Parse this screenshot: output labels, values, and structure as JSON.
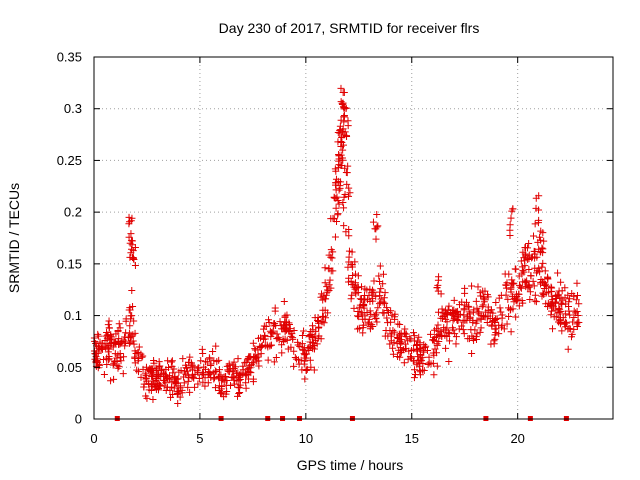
{
  "chart_data": {
    "type": "scatter",
    "title": "Day 230 of 2017, SRMTID for receiver flrs",
    "xlabel": "GPS time / hours",
    "ylabel": "SRMTID / TECUs",
    "xlim": [
      0,
      24.5
    ],
    "ylim": [
      0,
      0.35
    ],
    "x_ticks": [
      0,
      5,
      10,
      15,
      20
    ],
    "x_tick_labels": [
      "0",
      "5",
      "10",
      "15",
      "20"
    ],
    "y_ticks": [
      0,
      0.05,
      0.1,
      0.15,
      0.2,
      0.25,
      0.3,
      0.35
    ],
    "y_tick_labels": [
      "0",
      "0.05",
      "0.1",
      "0.15",
      "0.2",
      "0.25",
      "0.3",
      "0.35"
    ],
    "grid": true,
    "marker": "+",
    "color": "#e00000",
    "series": [
      {
        "name": "SRMTID",
        "trend": [
          [
            0.0,
            0.065
          ],
          [
            0.5,
            0.07
          ],
          [
            1.0,
            0.065
          ],
          [
            1.5,
            0.075
          ],
          [
            1.8,
            0.1
          ],
          [
            2.0,
            0.06
          ],
          [
            2.5,
            0.035
          ],
          [
            3.0,
            0.04
          ],
          [
            3.5,
            0.04
          ],
          [
            4.0,
            0.035
          ],
          [
            4.5,
            0.045
          ],
          [
            5.0,
            0.045
          ],
          [
            5.5,
            0.05
          ],
          [
            6.0,
            0.035
          ],
          [
            6.5,
            0.04
          ],
          [
            7.0,
            0.04
          ],
          [
            7.5,
            0.055
          ],
          [
            8.0,
            0.075
          ],
          [
            8.5,
            0.085
          ],
          [
            9.0,
            0.09
          ],
          [
            9.5,
            0.065
          ],
          [
            10.0,
            0.06
          ],
          [
            10.5,
            0.08
          ],
          [
            11.0,
            0.12
          ],
          [
            11.4,
            0.2
          ],
          [
            11.7,
            0.26
          ],
          [
            12.0,
            0.15
          ],
          [
            12.5,
            0.11
          ],
          [
            13.0,
            0.1
          ],
          [
            13.5,
            0.12
          ],
          [
            14.0,
            0.09
          ],
          [
            14.5,
            0.075
          ],
          [
            15.0,
            0.065
          ],
          [
            15.5,
            0.06
          ],
          [
            16.0,
            0.065
          ],
          [
            16.5,
            0.09
          ],
          [
            17.0,
            0.1
          ],
          [
            17.5,
            0.1
          ],
          [
            18.0,
            0.1
          ],
          [
            18.5,
            0.11
          ],
          [
            19.0,
            0.09
          ],
          [
            19.5,
            0.12
          ],
          [
            20.0,
            0.115
          ],
          [
            20.5,
            0.14
          ],
          [
            21.0,
            0.15
          ],
          [
            21.5,
            0.12
          ],
          [
            22.0,
            0.11
          ],
          [
            22.5,
            0.1
          ],
          [
            22.9,
            0.1
          ]
        ],
        "spikes": [
          [
            1.75,
            0.198
          ],
          [
            1.8,
            0.185
          ],
          [
            1.85,
            0.17
          ],
          [
            11.5,
            0.245
          ],
          [
            11.6,
            0.28
          ],
          [
            11.7,
            0.3
          ],
          [
            11.75,
            0.323
          ],
          [
            11.8,
            0.315
          ],
          [
            11.9,
            0.295
          ],
          [
            12.0,
            0.245
          ],
          [
            13.3,
            0.2
          ],
          [
            16.3,
            0.14
          ],
          [
            19.7,
            0.205
          ],
          [
            20.3,
            0.175
          ],
          [
            20.9,
            0.218
          ],
          [
            21.1,
            0.19
          ]
        ],
        "scatter_amplitude": 0.028,
        "point_count": 1250,
        "x_range": [
          0.0,
          22.9
        ]
      }
    ],
    "data_gaps_at_zero": [
      1.1,
      6.0,
      8.2,
      8.9,
      9.7,
      12.2,
      18.5,
      20.6,
      22.3
    ]
  }
}
